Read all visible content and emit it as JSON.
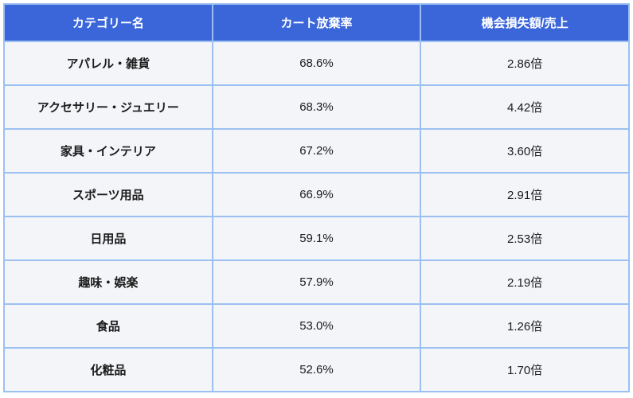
{
  "chart_data": {
    "type": "table",
    "title": "",
    "columns": [
      "カテゴリー名",
      "カート放棄率",
      "機会損失額/売上"
    ],
    "rows": [
      [
        "アパレル・雑貨",
        "68.6%",
        "2.86倍"
      ],
      [
        "アクセサリー・ジュエリー",
        "68.3%",
        "4.42倍"
      ],
      [
        "家具・インテリア",
        "67.2%",
        "3.60倍"
      ],
      [
        "スポーツ用品",
        "66.9%",
        "2.91倍"
      ],
      [
        "日用品",
        "59.1%",
        "2.53倍"
      ],
      [
        "趣味・娯楽",
        "57.9%",
        "2.19倍"
      ],
      [
        "食品",
        "53.0%",
        "1.26倍"
      ],
      [
        "化粧品",
        "52.6%",
        "1.70倍"
      ]
    ],
    "abandon_rates_percent": [
      68.6,
      68.3,
      67.2,
      66.9,
      59.1,
      57.9,
      53.0,
      52.6
    ],
    "loss_ratios": [
      2.86,
      4.42,
      3.6,
      2.91,
      2.53,
      2.19,
      1.26,
      1.7
    ]
  },
  "colors": {
    "header_bg": "#3a66da",
    "header_text": "#ffffff",
    "border": "#9cc0f2",
    "row_bg": "#f4f5f9",
    "body_text": "#1b1b1b"
  }
}
